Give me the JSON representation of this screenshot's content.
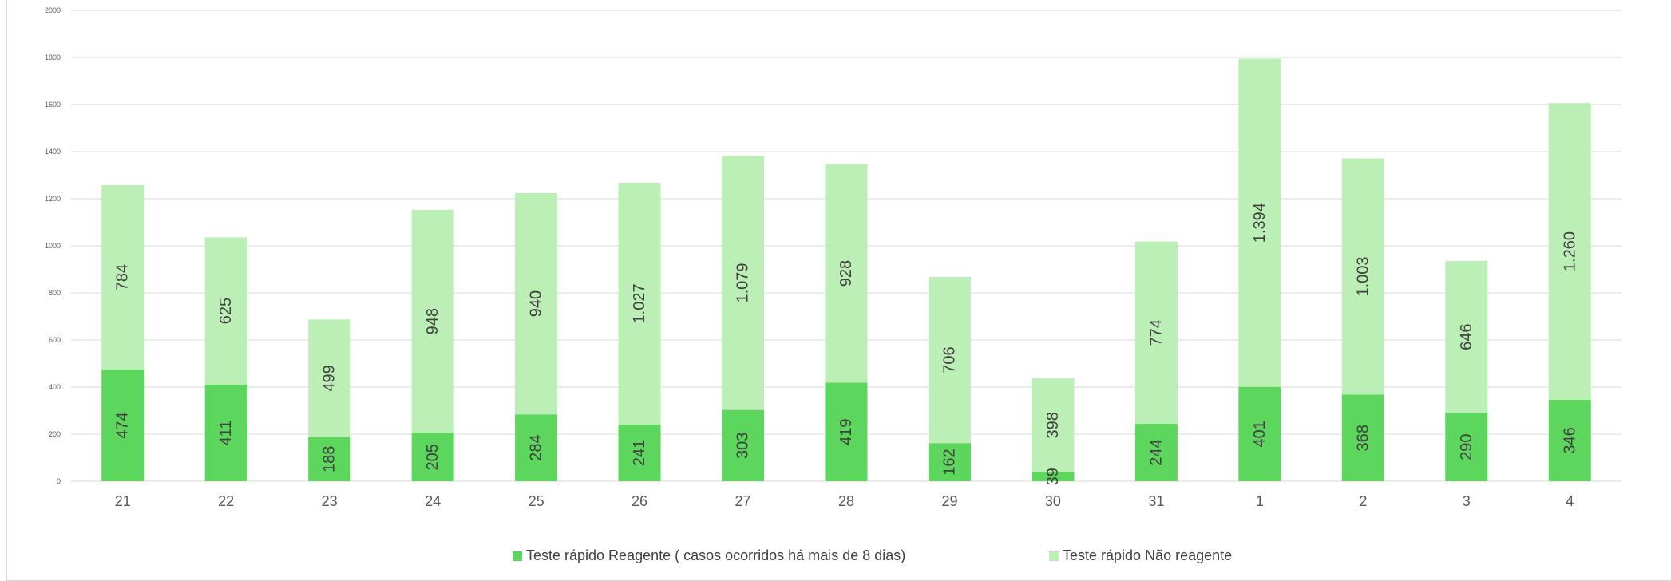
{
  "chart_data": {
    "type": "bar",
    "stacked": true,
    "categories": [
      "21",
      "22",
      "23",
      "24",
      "25",
      "26",
      "27",
      "28",
      "29",
      "30",
      "31",
      "1",
      "2",
      "3",
      "4"
    ],
    "series": [
      {
        "name": "Teste rápido Reagente ( casos ocorridos há mais de 8 dias)",
        "color": "#5cd65c",
        "values": [
          474,
          411,
          188,
          205,
          284,
          241,
          303,
          419,
          162,
          39,
          244,
          401,
          368,
          290,
          346
        ],
        "labels": [
          "474",
          "411",
          "188",
          "205",
          "284",
          "241",
          "303",
          "419",
          "162",
          "39",
          "244",
          "401",
          "368",
          "290",
          "346"
        ]
      },
      {
        "name": "Teste rápido Não reagente",
        "color": "#bcefb5",
        "values": [
          784,
          625,
          499,
          948,
          940,
          1027,
          1079,
          928,
          706,
          398,
          774,
          1394,
          1003,
          646,
          1260
        ],
        "labels": [
          "784",
          "625",
          "499",
          "948",
          "940",
          "1.027",
          "1.079",
          "928",
          "706",
          "398",
          "774",
          "1.394",
          "1.003",
          "646",
          "1.260"
        ]
      }
    ],
    "ylim": [
      0,
      2000
    ],
    "yticks": [
      "0",
      "200",
      "400",
      "600",
      "800",
      "1000",
      "1200",
      "1400",
      "1600",
      "1800",
      "2000"
    ],
    "ytick_values": [
      0,
      200,
      400,
      600,
      800,
      1000,
      1200,
      1400,
      1600,
      1800,
      2000
    ],
    "grid": true,
    "legend_position": "bottom",
    "colors": {
      "gridline": "#d9d9d9",
      "tick_text": "#595959",
      "label_text": "#404040"
    }
  }
}
